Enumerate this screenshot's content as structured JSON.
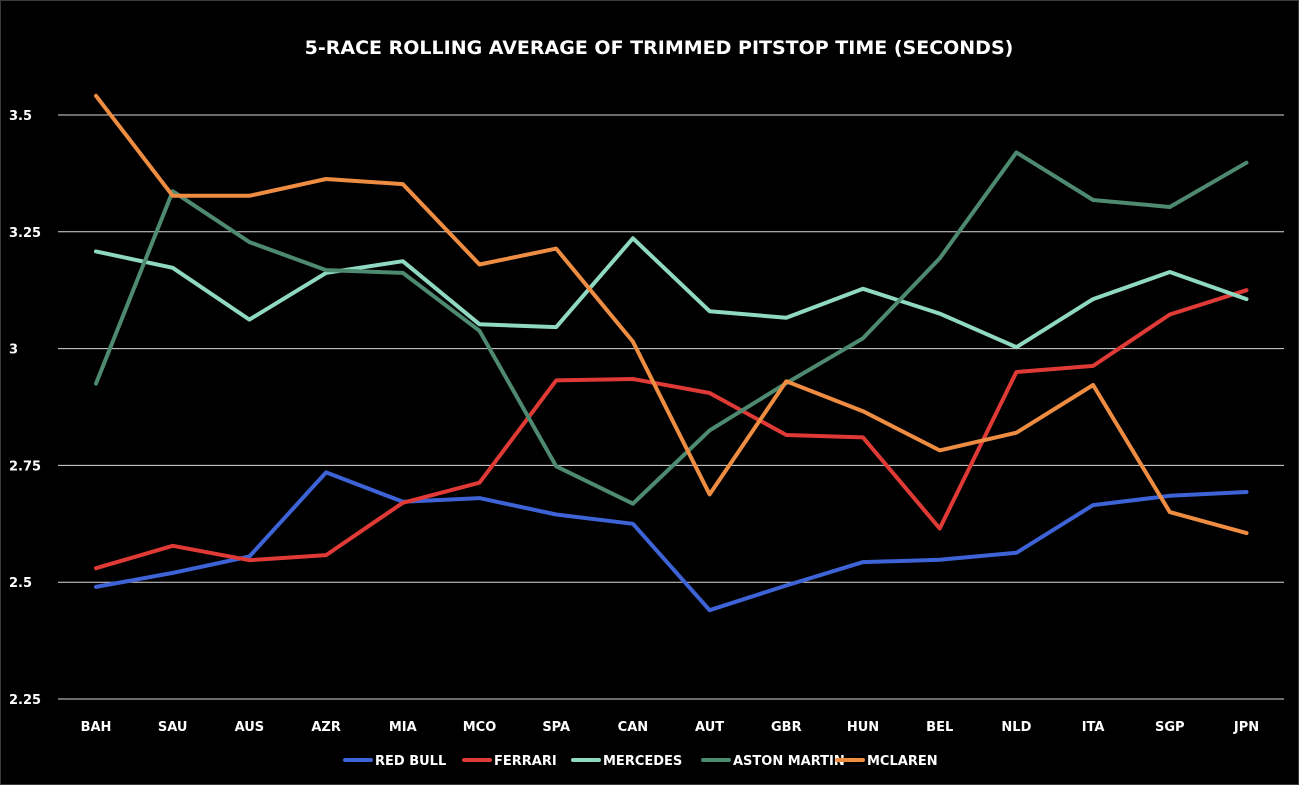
{
  "chart_data": {
    "type": "line",
    "title": "5-RACE ROLLING AVERAGE OF TRIMMED PITSTOP TIME (SECONDS)",
    "xlabel": "",
    "ylabel": "",
    "categories": [
      "BAH",
      "SAU",
      "AUS",
      "AZR",
      "MIA",
      "MCO",
      "SPA",
      "CAN",
      "AUT",
      "GBR",
      "HUN",
      "BEL",
      "NLD",
      "ITA",
      "SGP",
      "JPN"
    ],
    "ylim": [
      2.25,
      3.5
    ],
    "yticks": [
      2.25,
      2.5,
      2.75,
      3,
      3.25,
      3.5
    ],
    "ytick_labels": [
      "2.25",
      "2.5",
      "2.75",
      "3",
      "3.25",
      "3.5"
    ],
    "grid": true,
    "legend_position": "bottom",
    "series": [
      {
        "name": "RED BULL",
        "color": "#3d63d6",
        "values": [
          2.49,
          2.52,
          2.555,
          2.735,
          2.672,
          2.68,
          2.645,
          2.625,
          2.44,
          2.493,
          2.543,
          2.548,
          2.563,
          2.665,
          2.685,
          2.693
        ]
      },
      {
        "name": "FERRARI",
        "color": "#e03a36",
        "values": [
          2.53,
          2.578,
          2.547,
          2.558,
          2.67,
          2.713,
          2.932,
          2.935,
          2.905,
          2.815,
          2.81,
          2.615,
          2.95,
          2.963,
          3.073,
          3.125
        ]
      },
      {
        "name": "MERCEDES",
        "color": "#8fd8c2",
        "values": [
          3.208,
          3.173,
          3.062,
          3.162,
          3.187,
          3.052,
          3.046,
          3.236,
          3.08,
          3.066,
          3.128,
          3.075,
          3.003,
          3.106,
          3.164,
          3.106
        ]
      },
      {
        "name": "ASTON MARTIN",
        "color": "#4e8a70",
        "values": [
          2.925,
          3.337,
          3.228,
          3.168,
          3.162,
          3.038,
          2.748,
          2.668,
          2.825,
          2.926,
          3.022,
          3.193,
          3.42,
          3.318,
          3.303,
          3.398
        ]
      },
      {
        "name": "MCLAREN",
        "color": "#ee8d42",
        "values": [
          3.541,
          3.327,
          3.327,
          3.363,
          3.352,
          3.18,
          3.214,
          3.015,
          2.688,
          2.93,
          2.866,
          2.782,
          2.82,
          2.922,
          2.65,
          2.605
        ]
      }
    ]
  }
}
